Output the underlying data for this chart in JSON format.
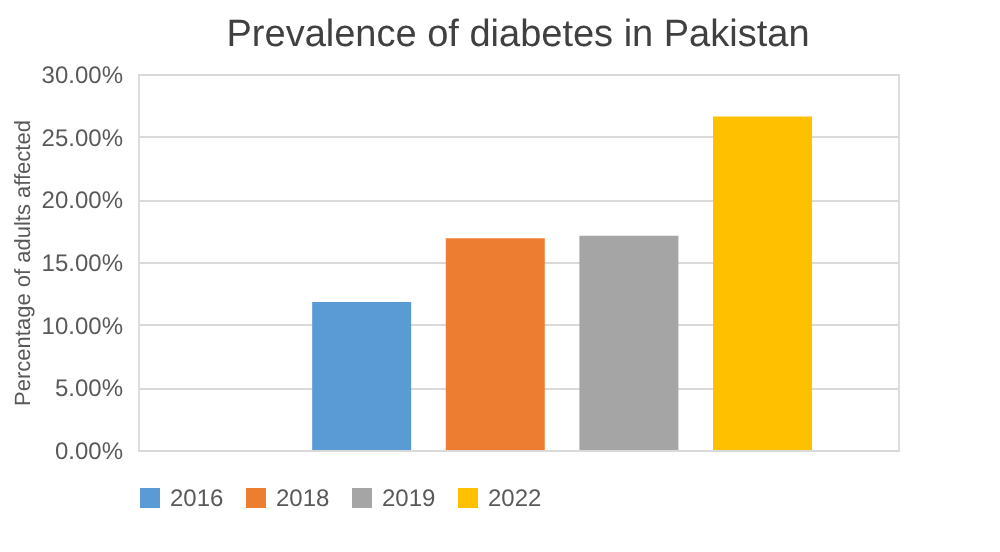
{
  "chart_data": {
    "type": "bar",
    "title": "Prevalence of diabetes in Pakistan",
    "ylabel": "Percentage of adults affected",
    "categories": [
      null
    ],
    "series": [
      {
        "name": "2016",
        "color": "#5b9bd5",
        "values": [
          11.8
        ]
      },
      {
        "name": "2018",
        "color": "#ed7d31",
        "values": [
          16.9
        ]
      },
      {
        "name": "2019",
        "color": "#a5a5a5",
        "values": [
          17.1
        ]
      },
      {
        "name": "2022",
        "color": "#ffc000",
        "values": [
          26.6
        ]
      }
    ],
    "ylim": [
      0,
      30
    ],
    "yticks": [
      {
        "value": 0,
        "label": "0.00%"
      },
      {
        "value": 5,
        "label": "5.00%"
      },
      {
        "value": 10,
        "label": "10.00%"
      },
      {
        "value": 15,
        "label": "15.00%"
      },
      {
        "value": 20,
        "label": "20.00%"
      },
      {
        "value": 25,
        "label": "25.00%"
      },
      {
        "value": 30,
        "label": "30.00%"
      }
    ],
    "grid": "y",
    "legend": "bottom",
    "tick_labels": "y"
  }
}
